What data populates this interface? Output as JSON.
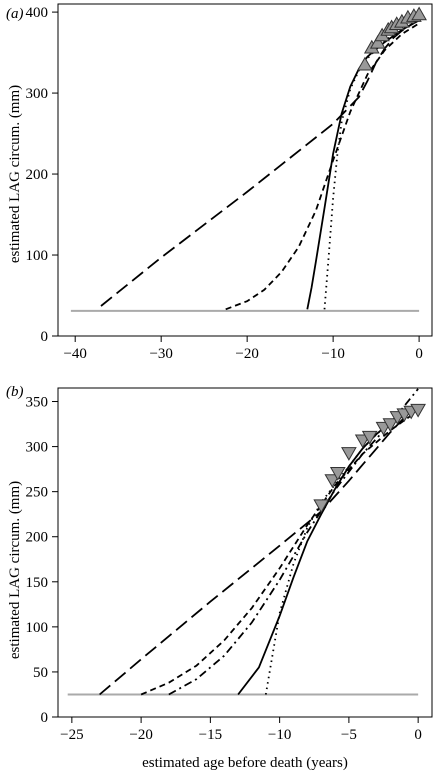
{
  "figure": {
    "panels": [
      {
        "label": "(a)",
        "ylabel": "estimated LAG circum. (mm)",
        "xlabel": ""
      },
      {
        "label": "(b)",
        "ylabel": "estimated LAG circum. (mm)",
        "xlabel": "estimated age before death (years)"
      }
    ]
  },
  "chart_data": [
    {
      "type": "line",
      "panel": "(a)",
      "title": "",
      "xlabel": "",
      "ylabel": "estimated LAG circum. (mm)",
      "xlim": [
        -42,
        1.5
      ],
      "ylim": [
        0,
        410
      ],
      "xticks": [
        -40,
        -30,
        -20,
        -10,
        0
      ],
      "yticks": [
        0,
        100,
        200,
        300,
        400
      ],
      "colors": {
        "curves": "#000000",
        "baseline": "#aaaaaa",
        "marker_fill": "#999999",
        "marker_edge": "#333333"
      },
      "baseline": {
        "y": 31,
        "x": [
          -40.5,
          0
        ]
      },
      "markers": {
        "shape": "triangle-up",
        "points": [
          [
            -6.3,
            335
          ],
          [
            -5.5,
            356
          ],
          [
            -4.8,
            362
          ],
          [
            -4.3,
            371
          ],
          [
            -3.6,
            378
          ],
          [
            -3.2,
            381
          ],
          [
            -2.6,
            385
          ],
          [
            -2.0,
            388
          ],
          [
            -1.3,
            393
          ],
          [
            -0.6,
            395
          ],
          [
            0.0,
            397
          ]
        ]
      },
      "series": [
        {
          "dash": "long-dash",
          "points": [
            [
              -37,
              37
            ],
            [
              -30,
              97
            ],
            [
              -20,
              178
            ],
            [
              -10,
              262
            ],
            [
              -7,
              295
            ],
            [
              -6,
              315
            ],
            [
              -5,
              338
            ],
            [
              -4,
              355
            ],
            [
              -3,
              368
            ],
            [
              -2,
              377
            ],
            [
              -1,
              384
            ],
            [
              0,
              390
            ]
          ]
        },
        {
          "dash": "short-dash",
          "points": [
            [
              -22.5,
              33
            ],
            [
              -20,
              43
            ],
            [
              -18,
              57
            ],
            [
              -16,
              79
            ],
            [
              -14,
              110
            ],
            [
              -12,
              155
            ],
            [
              -10,
              217
            ],
            [
              -8,
              277
            ],
            [
              -6,
              323
            ],
            [
              -4,
              353
            ],
            [
              -2,
              373
            ],
            [
              0,
              386
            ]
          ]
        },
        {
          "dash": "solid",
          "points": [
            [
              -13,
              33
            ],
            [
              -12.5,
              60
            ],
            [
              -12,
              92
            ],
            [
              -11,
              158
            ],
            [
              -10,
              225
            ],
            [
              -9,
              275
            ],
            [
              -8,
              308
            ],
            [
              -7,
              330
            ],
            [
              -6,
              345
            ],
            [
              -4,
              363
            ],
            [
              -2,
              378
            ],
            [
              0,
              390
            ]
          ]
        },
        {
          "dash": "dotted",
          "points": [
            [
              -11,
              33
            ],
            [
              -10.5,
              100
            ],
            [
              -10,
              170
            ],
            [
              -9.5,
              225
            ],
            [
              -9,
              265
            ],
            [
              -8,
              305
            ],
            [
              -7,
              328
            ],
            [
              -6,
              343
            ],
            [
              -4,
              364
            ],
            [
              -2,
              381
            ],
            [
              0,
              393
            ]
          ]
        }
      ]
    },
    {
      "type": "line",
      "panel": "(b)",
      "title": "",
      "xlabel": "estimated age before death (years)",
      "ylabel": "estimated LAG circum. (mm)",
      "xlim": [
        -26,
        1
      ],
      "ylim": [
        0,
        365
      ],
      "xticks": [
        -25,
        -20,
        -15,
        -10,
        -5,
        0
      ],
      "yticks": [
        0,
        50,
        100,
        150,
        200,
        250,
        300,
        350
      ],
      "colors": {
        "curves": "#000000",
        "baseline": "#aaaaaa",
        "marker_fill": "#999999",
        "marker_edge": "#333333"
      },
      "baseline": {
        "y": 25,
        "x": [
          -25.3,
          0
        ]
      },
      "markers": {
        "shape": "triangle-down",
        "points": [
          [
            -7.0,
            235
          ],
          [
            -6.2,
            263
          ],
          [
            -5.8,
            271
          ],
          [
            -5.0,
            293
          ],
          [
            -4.0,
            307
          ],
          [
            -3.5,
            311
          ],
          [
            -2.5,
            321
          ],
          [
            -2.0,
            325
          ],
          [
            -1.5,
            333
          ],
          [
            -1.0,
            336
          ],
          [
            -0.5,
            339
          ],
          [
            0.0,
            341
          ]
        ]
      },
      "series": [
        {
          "dash": "long-dash",
          "points": [
            [
              -23,
              25
            ],
            [
              -20,
              64
            ],
            [
              -15,
              128
            ],
            [
              -10,
              190
            ],
            [
              -7,
              228
            ],
            [
              -5,
              262
            ],
            [
              -4,
              280
            ],
            [
              -3,
              298
            ],
            [
              -2,
              316
            ],
            [
              -1,
              332
            ],
            [
              0,
              345
            ]
          ]
        },
        {
          "dash": "short-dash",
          "points": [
            [
              -20,
              25
            ],
            [
              -18,
              38
            ],
            [
              -16,
              57
            ],
            [
              -14,
              85
            ],
            [
              -12,
              121
            ],
            [
              -10,
              165
            ],
            [
              -8,
              213
            ],
            [
              -6,
              257
            ],
            [
              -4,
              292
            ],
            [
              -2,
              318
            ],
            [
              0,
              340
            ]
          ]
        },
        {
          "dash": "dash-dot",
          "points": [
            [
              -18,
              25
            ],
            [
              -16,
              42
            ],
            [
              -14,
              68
            ],
            [
              -12,
              105
            ],
            [
              -10,
              152
            ],
            [
              -8,
              205
            ],
            [
              -6,
              252
            ],
            [
              -4,
              292
            ],
            [
              -2,
              326
            ],
            [
              0,
              364
            ]
          ]
        },
        {
          "dash": "solid",
          "points": [
            [
              -13,
              25
            ],
            [
              -11.5,
              55
            ],
            [
              -10,
              112
            ],
            [
              -9,
              155
            ],
            [
              -8,
              195
            ],
            [
              -7,
              225
            ],
            [
              -6,
              253
            ],
            [
              -5,
              278
            ],
            [
              -4,
              298
            ],
            [
              -3,
              314
            ],
            [
              -2,
              327
            ],
            [
              -1,
              335
            ],
            [
              0,
              340
            ]
          ]
        },
        {
          "dash": "dotted",
          "points": [
            [
              -11,
              25
            ],
            [
              -10.5,
              70
            ],
            [
              -10,
              115
            ],
            [
              -9,
              170
            ],
            [
              -8,
              210
            ],
            [
              -7,
              238
            ],
            [
              -6,
              258
            ],
            [
              -5,
              278
            ],
            [
              -4,
              298
            ],
            [
              -3,
              314
            ],
            [
              -2,
              326
            ],
            [
              -1,
              334
            ],
            [
              0,
              340
            ]
          ]
        }
      ]
    }
  ]
}
